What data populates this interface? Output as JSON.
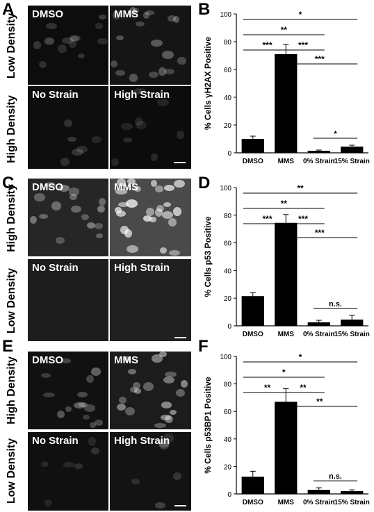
{
  "panel_letters": [
    "A",
    "B",
    "C",
    "D",
    "E",
    "F"
  ],
  "image_panels": [
    {
      "letter_key": 0,
      "rows": [
        {
          "row_label": "Low Density",
          "tiles": [
            {
              "label": "DMSO",
              "bg": "#0d0d0d"
            },
            {
              "label": "MMS",
              "bg": "#151515"
            }
          ]
        },
        {
          "row_label": "High Density",
          "tiles": [
            {
              "label": "No Strain",
              "bg": "#0e0e0e"
            },
            {
              "label": "High Strain",
              "bg": "#0c0c0c"
            }
          ]
        }
      ]
    },
    {
      "letter_key": 2,
      "rows": [
        {
          "row_label": "High Density",
          "tiles": [
            {
              "label": "DMSO",
              "bg": "#262626"
            },
            {
              "label": "MMS",
              "bg": "#4a4a4a"
            }
          ]
        },
        {
          "row_label": "Low Density",
          "tiles": [
            {
              "label": "No Strain",
              "bg": "#1d1d1d"
            },
            {
              "label": "High Strain",
              "bg": "#202020"
            }
          ]
        }
      ]
    },
    {
      "letter_key": 4,
      "rows": [
        {
          "row_label": "High Density",
          "tiles": [
            {
              "label": "DMSO",
              "bg": "#111111"
            },
            {
              "label": "MMS",
              "bg": "#1c1c1c"
            }
          ]
        },
        {
          "row_label": "Low Density",
          "tiles": [
            {
              "label": "No Strain",
              "bg": "#101010"
            },
            {
              "label": "High Strain",
              "bg": "#131313"
            }
          ]
        }
      ]
    }
  ],
  "chart_data": [
    {
      "type": "bar",
      "panel": "B",
      "ylabel": "% Cells γH2AX Positive",
      "categories": [
        "DMSO",
        "MMS",
        "0% Strain",
        "15% Strain"
      ],
      "values": [
        10,
        71,
        1.5,
        4.5
      ],
      "errors": [
        2,
        7,
        0.5,
        1
      ],
      "ylim": [
        0,
        100
      ],
      "yticks": [
        0,
        20,
        40,
        60,
        80,
        100
      ],
      "bar_color": "#000000",
      "significance": [
        {
          "from": 0,
          "to": 3,
          "label": "*"
        },
        {
          "from": 0,
          "to": 2,
          "label": "**"
        },
        {
          "from": 0,
          "to": 1,
          "label": "***"
        },
        {
          "from": 1,
          "to": 2,
          "label": "***"
        },
        {
          "from": 1,
          "to": 3,
          "label": "***"
        },
        {
          "from": 2,
          "to": 3,
          "label": "*"
        }
      ]
    },
    {
      "type": "bar",
      "panel": "D",
      "ylabel": "% Cells p53 Positive",
      "categories": [
        "DMSO",
        "MMS",
        "0% Strain",
        "15% Strain"
      ],
      "values": [
        21.5,
        74.5,
        2.5,
        4.5
      ],
      "errors": [
        2.5,
        6,
        1.5,
        3
      ],
      "ylim": [
        0,
        100
      ],
      "yticks": [
        0,
        20,
        40,
        60,
        80,
        100
      ],
      "bar_color": "#000000",
      "significance": [
        {
          "from": 0,
          "to": 3,
          "label": "**"
        },
        {
          "from": 0,
          "to": 2,
          "label": "**"
        },
        {
          "from": 0,
          "to": 1,
          "label": "***"
        },
        {
          "from": 1,
          "to": 2,
          "label": "***"
        },
        {
          "from": 1,
          "to": 3,
          "label": "***"
        },
        {
          "from": 2,
          "to": 3,
          "label": "n.s."
        }
      ]
    },
    {
      "type": "bar",
      "panel": "F",
      "ylabel": "% Cells p53BP1 Positive",
      "categories": [
        "DMSO",
        "MMS",
        "0% Strain",
        "15% Strain"
      ],
      "values": [
        12.5,
        67,
        3,
        2
      ],
      "errors": [
        4,
        9.5,
        1.5,
        1
      ],
      "ylim": [
        0,
        100
      ],
      "yticks": [
        0,
        20,
        40,
        60,
        80,
        100
      ],
      "bar_color": "#000000",
      "significance": [
        {
          "from": 0,
          "to": 3,
          "label": "*"
        },
        {
          "from": 0,
          "to": 2,
          "label": "*"
        },
        {
          "from": 0,
          "to": 1,
          "label": "**"
        },
        {
          "from": 1,
          "to": 2,
          "label": "**"
        },
        {
          "from": 1,
          "to": 3,
          "label": "**"
        },
        {
          "from": 2,
          "to": 3,
          "label": "n.s."
        }
      ]
    }
  ]
}
